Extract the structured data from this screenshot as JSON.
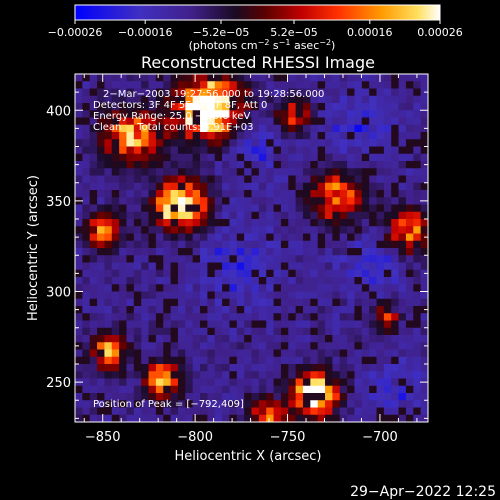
{
  "chart_data": {
    "type": "heatmap",
    "title": "Reconstructed RHESSI Image",
    "xlabel": "Heliocentric X (arcsec)",
    "ylabel": "Heliocentric Y (arcsec)",
    "xlim": [
      -865,
      -674
    ],
    "ylim": [
      228,
      420
    ],
    "x_ticks": [
      -850,
      -800,
      -750,
      -700
    ],
    "y_ticks": [
      250,
      300,
      350,
      400
    ],
    "x_tick_labels": [
      "−850",
      "−800",
      "−750",
      "−700"
    ],
    "y_tick_labels": [
      "250",
      "300",
      "350",
      "400"
    ],
    "colorbar": {
      "range": [
        -0.00026,
        0.00026
      ],
      "ticks": [
        -0.00026,
        -0.00016,
        -5.2e-05,
        5.2e-05,
        0.00016,
        0.00026
      ],
      "tick_labels": [
        "−0.00026",
        "−0.00016",
        "−5.2e−05",
        "5.2e−05",
        "0.00016",
        "0.00026"
      ],
      "units_label_text": "(photons cm",
      "units_label_sup1": "−2",
      "units_label_mid1": " s",
      "units_label_sup2": "−1",
      "units_label_mid2": " asec",
      "units_label_sup3": "−2",
      "units_label_end": ")"
    },
    "annotations": {
      "time_range": "2−Mar−2003 19:27:56.000 to 19:28:56.000",
      "detectors": "Detectors: 3F 4F 5F 6F 7F 8F, Att 0",
      "energy_range": "Energy Range: 25.0 − 50.0 keV",
      "clean_counts": "Clean     Total counts: 4.91E+03",
      "peak_position": "Position of Peak = [−792,409]"
    },
    "colormap_colors": [
      "#0000ff",
      "#5040b0",
      "#201028",
      "#900000",
      "#ff2000",
      "#ff9000",
      "#ffd040",
      "#ffffff"
    ],
    "grid": false,
    "peak_value_position": [
      -792,
      409
    ]
  },
  "footer": {
    "timestamp": "29−Apr−2022 12:25"
  }
}
